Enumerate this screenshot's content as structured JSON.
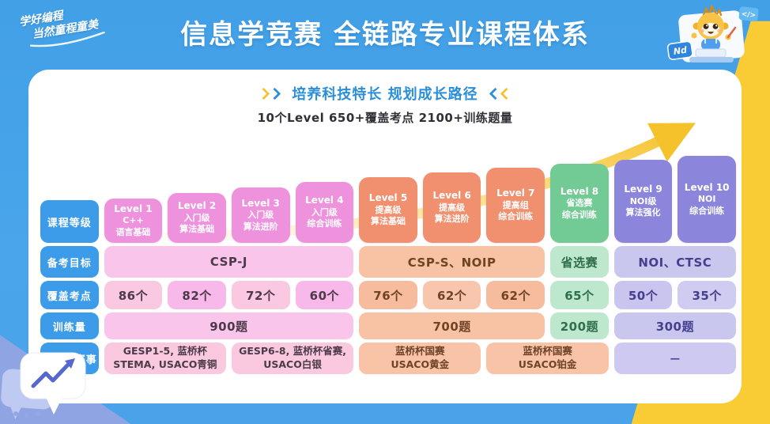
{
  "header": {
    "slogan_line1": "学好编程",
    "slogan_line2": "当然童程童美",
    "title": "信息学竞赛 全链路专业课程体系"
  },
  "mascot": {
    "nd_badge": "Nd",
    "code_badge": "</>"
  },
  "intro": {
    "subtitle": "培养科技特长 规划成长路径",
    "stats": "10个Level 650+覆盖考点 2100+训练题量"
  },
  "table": {
    "row_labels": [
      "课程等级",
      "备考目标",
      "覆盖考点",
      "训练量",
      "可参与赛事"
    ],
    "levels": [
      {
        "name": "Level 1",
        "line2": "C++",
        "line3": "语言基础",
        "group": "pink"
      },
      {
        "name": "Level 2",
        "line2": "入门级",
        "line3": "算法基础",
        "group": "pink"
      },
      {
        "name": "Level 3",
        "line2": "入门级",
        "line3": "算法进阶",
        "group": "pink"
      },
      {
        "name": "Level 4",
        "line2": "入门级",
        "line3": "综合训练",
        "group": "pink"
      },
      {
        "name": "Level 5",
        "line2": "提高级",
        "line3": "算法基础",
        "group": "orange"
      },
      {
        "name": "Level 6",
        "line2": "提高级",
        "line3": "算法进阶",
        "group": "orange"
      },
      {
        "name": "Level 7",
        "line2": "提高组",
        "line3": "综合训练",
        "group": "orange"
      },
      {
        "name": "Level 8",
        "line2": "省选赛",
        "line3": "综合训练",
        "group": "green"
      },
      {
        "name": "Level 9",
        "line2": "NOI级",
        "line3": "算法强化",
        "group": "purple"
      },
      {
        "name": "Level 10",
        "line2": "NOI",
        "line3": "综合训练",
        "group": "purple"
      }
    ],
    "exam_targets": [
      {
        "label": "CSP-J",
        "span": 4,
        "group": "pink"
      },
      {
        "label": "CSP-S、NOIP",
        "span": 3,
        "group": "orange"
      },
      {
        "label": "省选赛",
        "span": 1,
        "group": "green"
      },
      {
        "label": "NOI、CTSC",
        "span": 2,
        "group": "purple"
      }
    ],
    "coverage": [
      {
        "label": "86个",
        "group": "pink"
      },
      {
        "label": "82个",
        "group": "pink"
      },
      {
        "label": "72个",
        "group": "pink"
      },
      {
        "label": "60个",
        "group": "pink"
      },
      {
        "label": "76个",
        "group": "orange"
      },
      {
        "label": "62个",
        "group": "orange"
      },
      {
        "label": "62个",
        "group": "orange"
      },
      {
        "label": "65个",
        "group": "green"
      },
      {
        "label": "50个",
        "group": "purple"
      },
      {
        "label": "35个",
        "group": "purple"
      }
    ],
    "training": [
      {
        "label": "900题",
        "span": 4,
        "group": "pink"
      },
      {
        "label": "700题",
        "span": 3,
        "group": "orange"
      },
      {
        "label": "200题",
        "span": 1,
        "group": "green"
      },
      {
        "label": "300题",
        "span": 2,
        "group": "purple"
      }
    ],
    "competitions": [
      {
        "lines": [
          "GESP1-5, 蓝桥杯",
          "STEMA, USACO青铜"
        ],
        "span": 2,
        "group": "pink"
      },
      {
        "lines": [
          "GESP6-8, 蓝桥杯省赛,",
          "USACO白银"
        ],
        "span": 2,
        "group": "pink"
      },
      {
        "lines": [
          "蓝桥杯国赛",
          "USACO黄金"
        ],
        "span": 2,
        "group": "orange"
      },
      {
        "lines": [
          "蓝桥杯国赛",
          "USACO铂金"
        ],
        "span": 2,
        "group": "orange"
      },
      {
        "lines": [
          "—"
        ],
        "span": 2,
        "group": "purple"
      }
    ]
  },
  "palette": {
    "background_blue": "#4aa3e9",
    "accent_yellow": "#f9cb35",
    "row_label_blue": "#3d9ce9",
    "subtitle_blue": "#2a8ed9",
    "arrow_gold": "#f5c22b",
    "groups": {
      "pink": {
        "card": "#ef92dd",
        "light": "#f9c5eb",
        "comp": "#fac9e0",
        "text": "#4c3a48",
        "cov": [
          "#fbc8e2",
          "#f8b9ea"
        ]
      },
      "orange": {
        "card": "#f1906e",
        "light": "#f8c2a4",
        "comp": "#f8c3a6",
        "text": "#6e4326",
        "cov": [
          "#f7bc9e",
          "#f8c6ac"
        ]
      },
      "green": {
        "card": "#72cb94",
        "light": "#bde8ce",
        "comp": "#bde8ce",
        "text": "#2f6e4a",
        "cov": [
          "#bde8ce",
          "#bde8ce"
        ]
      },
      "purple": {
        "card": "#8b85dc",
        "light": "#cac7ef",
        "comp": "#cdc9f0",
        "text": "#45408e",
        "cov": [
          "#c9c5ee",
          "#cfcbf1"
        ]
      }
    }
  }
}
